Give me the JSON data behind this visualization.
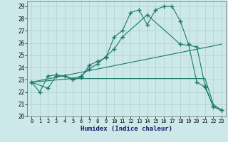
{
  "xlabel": "Humidex (Indice chaleur)",
  "bg_color": "#cce8e8",
  "grid_color": "#b0d0d0",
  "line_color": "#1a7a6a",
  "xlim": [
    -0.5,
    23.5
  ],
  "ylim": [
    20,
    29.4
  ],
  "yticks": [
    20,
    21,
    22,
    23,
    24,
    25,
    26,
    27,
    28,
    29
  ],
  "xticks": [
    0,
    1,
    2,
    3,
    4,
    5,
    6,
    7,
    8,
    9,
    10,
    11,
    12,
    13,
    14,
    15,
    16,
    17,
    18,
    19,
    20,
    21,
    22,
    23
  ],
  "lines": [
    {
      "x": [
        0,
        1,
        2,
        3,
        4,
        5,
        6,
        7,
        8,
        9,
        10,
        11,
        12,
        13,
        14,
        15,
        16,
        17,
        18,
        19,
        20,
        21,
        22,
        23
      ],
      "y": [
        22.8,
        22.0,
        23.3,
        23.4,
        23.3,
        23.0,
        23.2,
        24.2,
        24.5,
        24.8,
        26.5,
        27.0,
        28.5,
        28.7,
        27.5,
        28.7,
        29.0,
        29.0,
        27.8,
        25.9,
        22.8,
        22.4,
        20.8,
        20.5
      ],
      "marker": "+",
      "markersize": 4,
      "has_markers": true
    },
    {
      "x": [
        0,
        23
      ],
      "y": [
        22.8,
        25.9
      ],
      "marker": null,
      "markersize": 0,
      "has_markers": false
    },
    {
      "x": [
        0,
        2,
        3,
        4,
        5,
        6,
        7,
        8,
        9,
        10,
        11,
        14,
        18,
        20,
        21,
        22,
        23
      ],
      "y": [
        22.8,
        22.3,
        23.3,
        23.3,
        23.1,
        23.3,
        23.9,
        24.3,
        24.9,
        25.5,
        26.5,
        28.3,
        25.9,
        25.7,
        22.5,
        20.8,
        20.5
      ],
      "marker": "+",
      "markersize": 4,
      "has_markers": true
    },
    {
      "x": [
        0,
        5,
        18,
        21,
        22,
        23
      ],
      "y": [
        22.8,
        23.1,
        23.1,
        23.1,
        21.0,
        20.5
      ],
      "marker": null,
      "markersize": 0,
      "has_markers": false
    }
  ]
}
